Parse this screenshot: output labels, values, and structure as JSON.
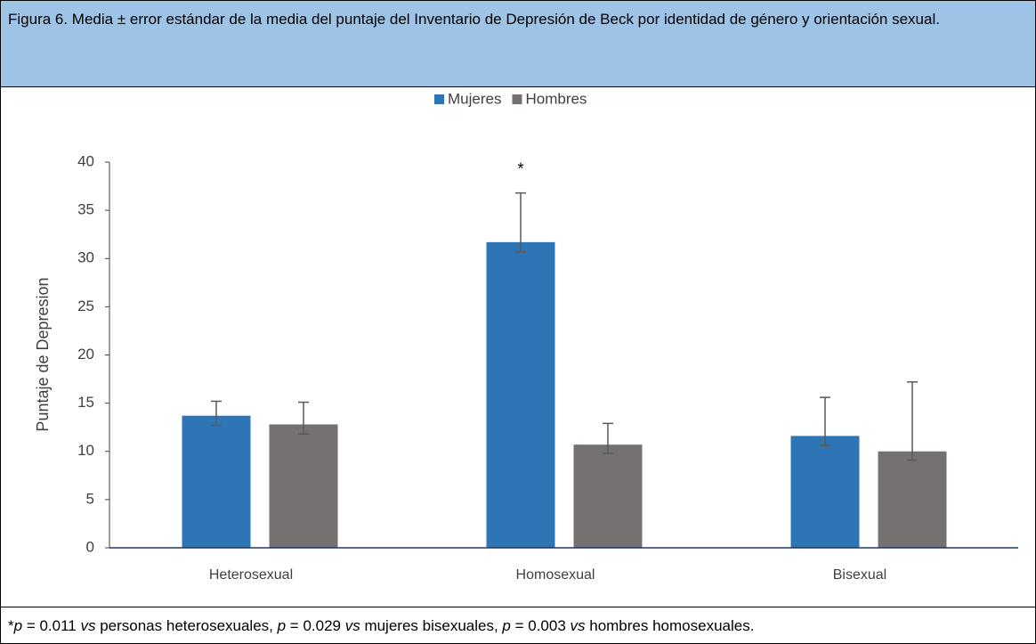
{
  "chart_data": {
    "type": "bar",
    "title": "Figura 6. Media ± error estándar de la media del puntaje del Inventario de Depresión de Beck por identidad de género y orientación sexual.",
    "y_label": "Puntaje de Depresion",
    "categories": [
      "Heterosexual",
      "Homosexual",
      "Bisexual"
    ],
    "series": [
      {
        "name": "Mujeres",
        "color": "#2e75b6",
        "values": [
          13.7,
          31.7,
          11.6
        ],
        "error_plus": [
          1.5,
          5.1,
          4.0
        ],
        "error_minus": [
          1.0,
          1.0,
          1.0
        ]
      },
      {
        "name": "Hombres",
        "color": "#767171",
        "values": [
          12.8,
          10.7,
          10.0
        ],
        "error_plus": [
          2.3,
          2.2,
          7.2
        ],
        "error_minus": [
          1.0,
          0.9,
          0.9
        ]
      }
    ],
    "annotation": "*",
    "ylim": [
      0,
      40
    ],
    "yticks": [
      0,
      5,
      10,
      15,
      20,
      25,
      30,
      35,
      40
    ],
    "legend": "top",
    "footnote": [
      "*",
      "p",
      " = 0.011 ",
      "vs",
      " personas heterosexuales, ",
      "p",
      " = 0.029 ",
      "vs",
      " mujeres bisexuales, ",
      "p",
      " = 0.003 ",
      "vs",
      " hombres homosexuales."
    ]
  }
}
